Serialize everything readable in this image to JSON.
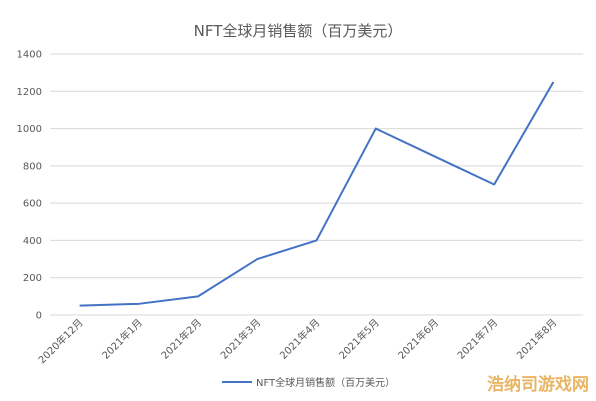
{
  "chart_data": {
    "type": "line",
    "title": "NFT全球月销售额（百万美元）",
    "categories": [
      "2020年12月",
      "2021年1月",
      "2021年2月",
      "2021年3月",
      "2021年4月",
      "2021年5月",
      "2021年6月",
      "2021年7月",
      "2021年8月"
    ],
    "series": [
      {
        "name": "NFT全球月销售额（百万美元）",
        "values": [
          50,
          60,
          100,
          300,
          400,
          1000,
          850,
          700,
          1250
        ],
        "color": "#4472c4"
      }
    ],
    "ylim": [
      0,
      1400
    ],
    "yticks": [
      0,
      200,
      400,
      600,
      800,
      1000,
      1200,
      1400
    ],
    "grid": true,
    "legend_position": "bottom"
  },
  "watermark": {
    "text": "浩纳司游戏网"
  }
}
